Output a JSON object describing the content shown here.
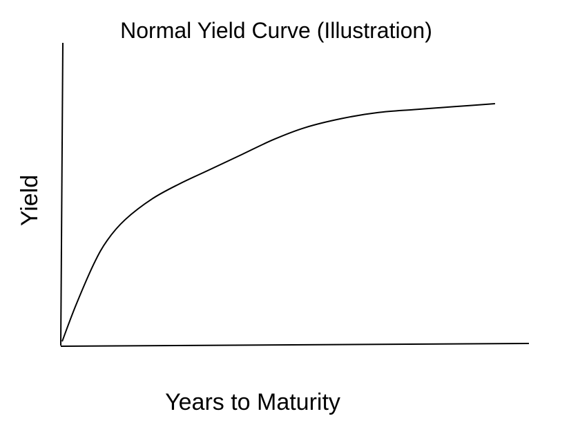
{
  "chart_data": {
    "type": "line",
    "title": "Normal Yield Curve (Illustration)",
    "xlabel": "Years to Maturity",
    "ylabel": "Yield",
    "grid": false,
    "ticks": false,
    "xlim": [
      0,
      100
    ],
    "ylim": [
      0,
      100
    ],
    "series": [
      {
        "x": [
          0,
          3,
          7,
          10,
          14,
          20,
          26,
          33,
          40,
          47,
          54,
          62,
          70,
          78,
          87,
          96
        ],
        "y": [
          0,
          12,
          26,
          34,
          41,
          48,
          53,
          58,
          63,
          68,
          72,
          75,
          77,
          78,
          79,
          80
        ]
      }
    ]
  },
  "colors": {
    "axis": "#000000",
    "line": "#000000",
    "background": "#ffffff"
  }
}
